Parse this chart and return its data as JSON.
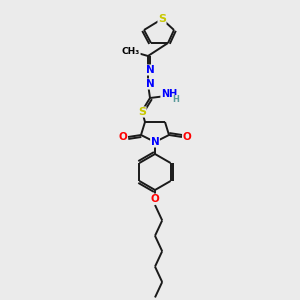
{
  "background_color": "#ebebeb",
  "bond_color": "#1a1a1a",
  "atom_colors": {
    "S": "#c8c800",
    "N": "#0000ff",
    "O": "#ff0000",
    "C": "#1a1a1a",
    "H": "#5a9a9a"
  },
  "font_size_atom": 7.5,
  "fig_size": [
    3.0,
    3.0
  ],
  "dpi": 100,
  "lw": 1.4,
  "bg": "#ebebeb"
}
